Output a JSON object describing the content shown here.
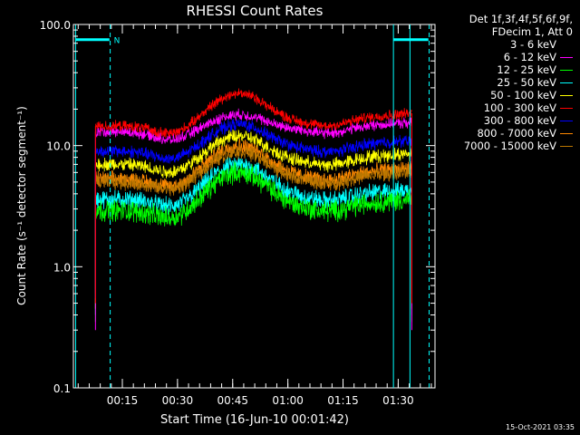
{
  "chart_data": {
    "type": "line",
    "title": "RHESSI Count Rates",
    "xlabel": "Start Time (16-Jun-10 00:01:42)",
    "ylabel": "Count Rate (s⁻¹ detector segment⁻¹)",
    "y_scale": "log",
    "ylim": [
      0.1,
      100
    ],
    "y_ticks": [
      "0.1",
      "1.0",
      "10.0",
      "100.0"
    ],
    "xlim_minutes": [
      0,
      98.3
    ],
    "x_ticks": [
      "00:15",
      "00:30",
      "00:45",
      "01:00",
      "01:15",
      "01:30"
    ],
    "x_tick_minutes": [
      13.3,
      28.3,
      43.3,
      58.3,
      73.3,
      88.3
    ],
    "x_start_minute": 6,
    "x_end_minute": 92,
    "peak_minute": 45,
    "night_marks": {
      "solid_minutes": [
        0.6,
        87,
        91.5
      ],
      "dashed_minutes": [
        10,
        96.7
      ],
      "bar_level": 75,
      "bar_spans": [
        [
          0.6,
          9.8
        ],
        [
          87,
          96.5
        ]
      ],
      "label": "N"
    },
    "series": [
      {
        "name": "3 - 6 keV",
        "color": "#000000",
        "base": 2.1,
        "peak": 7.0,
        "late": 3.3,
        "noise": 0.08
      },
      {
        "name": "6 - 12 keV",
        "color": "#ff00ff",
        "base": 13.0,
        "peak": 18.0,
        "late": 15.5,
        "noise": 0.035
      },
      {
        "name": "12 - 25 keV",
        "color": "#00ff00",
        "base": 2.9,
        "peak": 6.0,
        "late": 3.6,
        "noise": 0.07
      },
      {
        "name": "25 - 50 keV",
        "color": "#00ffff",
        "base": 3.6,
        "peak": 7.0,
        "late": 4.3,
        "noise": 0.06
      },
      {
        "name": "50 - 100 keV",
        "color": "#ffff00",
        "base": 7.0,
        "peak": 12.0,
        "late": 8.6,
        "noise": 0.045
      },
      {
        "name": "100 - 300 keV",
        "color": "#ff0000",
        "base": 14.5,
        "peak": 27.0,
        "late": 18.5,
        "noise": 0.035
      },
      {
        "name": "300 - 800 keV",
        "color": "#0000ff",
        "base": 9.0,
        "peak": 15.0,
        "late": 11.0,
        "noise": 0.04
      },
      {
        "name": "800 - 7000 keV",
        "color": "#ff8800",
        "base": 5.3,
        "peak": 10.0,
        "late": 6.5,
        "noise": 0.05
      },
      {
        "name": "7000 - 15000 keV",
        "color": "#bb7700",
        "base": 5.0,
        "peak": 9.0,
        "late": 6.0,
        "noise": 0.05
      }
    ]
  },
  "legend": {
    "header_lines": [
      "Det 1f,3f,4f,5f,6f,9f,",
      "FDecim 1, Att 0"
    ]
  },
  "timestamp": "15-Oct-2021 03:35"
}
